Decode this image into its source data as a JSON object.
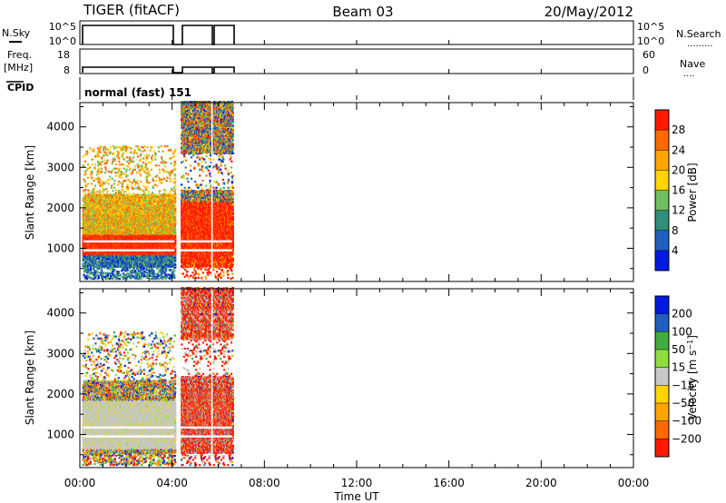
{
  "header": {
    "station": "TIGER (fitACF)",
    "beam": "Beam 03",
    "date": "20/May/2012"
  },
  "panels": {
    "nsky": {
      "label": "N.Sky",
      "ticks_left": [
        "10^5",
        "10^0"
      ],
      "ticks_right": [
        "10^5",
        "10^0"
      ],
      "right_label": "N.Search",
      "right_marker": "........."
    },
    "freq": {
      "label_line1": "Freq.",
      "label_line2": "[MHz]",
      "ticks_left": [
        "18",
        "8"
      ],
      "ticks_right": [
        "60",
        "0"
      ],
      "right_label": "Nave",
      "right_marker": "...."
    },
    "cpid": {
      "label": "CPID",
      "text": "normal (fast) 151"
    }
  },
  "x_axis": {
    "label": "Time UT",
    "ticks": [
      "00:00",
      "04:00",
      "08:00",
      "12:00",
      "16:00",
      "20:00",
      "00:00"
    ]
  },
  "colors": {
    "power": [
      "#0019e0",
      "#1f5fbf",
      "#2f8f7a",
      "#6fbf5f",
      "#ffd400",
      "#ffa500",
      "#ff6a00",
      "#ff1a00"
    ],
    "velocity": [
      "#0019e0",
      "#1f5fbf",
      "#3fae3f",
      "#8fdc3f",
      "#c8c8c8",
      "#ffd400",
      "#ffa500",
      "#ff6a00",
      "#ff1a00"
    ]
  },
  "chart_data": [
    {
      "type": "heatmap",
      "name": "power",
      "ylabel": "Slant Range [km]",
      "yticks": [
        1000,
        2000,
        3000,
        4000
      ],
      "ylim": [
        180,
        4600
      ],
      "xlim_hours": [
        0,
        24
      ],
      "colorbar_label": "Power [dB]",
      "colorbar_ticks": [
        "4",
        "8",
        "12",
        "16",
        "20",
        "24",
        "28"
      ],
      "data_gaps_hours": [
        [
          4.1,
          4.35
        ]
      ],
      "observed_hours": [
        0,
        6.6
      ]
    },
    {
      "type": "heatmap",
      "name": "velocity",
      "ylabel": "Slant Range [km]",
      "yticks": [
        1000,
        2000,
        3000,
        4000
      ],
      "ylim": [
        180,
        4600
      ],
      "xlim_hours": [
        0,
        24
      ],
      "colorbar_label": "Velocity [m s^-1]",
      "colorbar_ticks": [
        "200",
        "100",
        "50",
        "15",
        "-15",
        "-50",
        "-100",
        "-200"
      ],
      "data_gaps_hours": [
        [
          4.1,
          4.35
        ]
      ],
      "observed_hours": [
        0,
        6.6
      ]
    }
  ]
}
